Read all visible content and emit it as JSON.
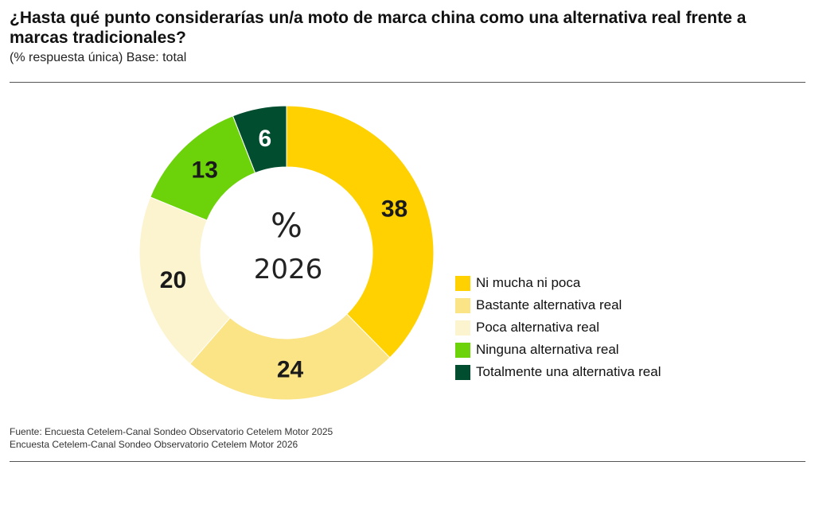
{
  "header": {
    "title": "¿Hasta qué punto considerarías un/a moto de marca china como una alternativa real frente a marcas tradicionales?",
    "subtitle": "(% respuesta única) Base: total"
  },
  "chart_data": {
    "type": "pie",
    "donut": true,
    "title": "¿Hasta qué punto considerarías un/a moto de marca china como una alternativa real frente a marcas tradicionales?",
    "center_symbol": "%",
    "center_label": "2026",
    "categories": [
      "Ni mucha ni poca",
      "Bastante alternativa real",
      "Poca alternativa real",
      "Ninguna alternativa real",
      "Totalmente una alternativa real"
    ],
    "values": [
      38,
      24,
      20,
      13,
      6
    ],
    "value_labels": [
      "38",
      "24",
      "20",
      "13",
      "6"
    ],
    "colors": [
      "#FFD100",
      "#FBE486",
      "#FCF3CF",
      "#6CD20A",
      "#004D2F"
    ],
    "legend_position": "right"
  },
  "source": {
    "line1": "Fuente: Encuesta Cetelem-Canal Sondeo Observatorio Cetelem Motor 2025",
    "line2": "Encuesta Cetelem-Canal Sondeo Observatorio Cetelem Motor 2026"
  }
}
